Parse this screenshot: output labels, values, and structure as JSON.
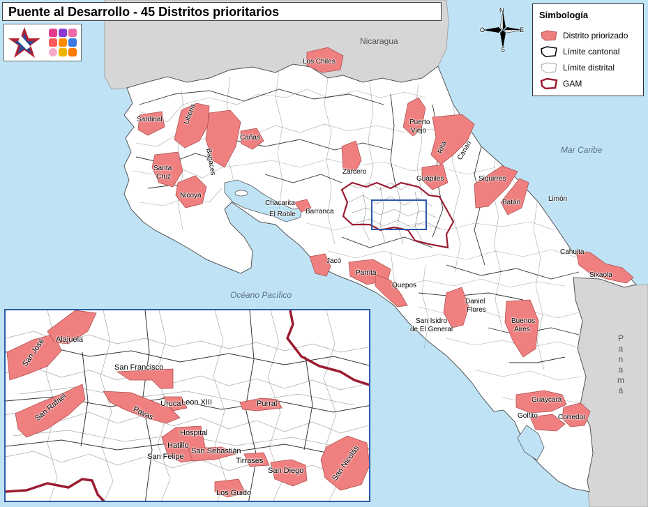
{
  "title": "Puente al Desarrollo - 45 Distritos prioritarios",
  "colors": {
    "sea": "#bfe3f5",
    "land": "#ffffff",
    "neighbor": "#d6d6d6",
    "priority": "#f08080",
    "gam": "#9b1c31",
    "inset_frame": "#2a5aa8"
  },
  "legend": {
    "title": "Simbología",
    "items": [
      {
        "label": "Distrito priorizado",
        "symbol": "pink-fill-icon"
      },
      {
        "label": "Límite cantonal",
        "symbol": "black-outline-icon"
      },
      {
        "label": "Límite distrital",
        "symbol": "gray-outline-icon"
      },
      {
        "label": "GAM",
        "symbol": "red-outline-icon"
      }
    ]
  },
  "compass": {
    "n": "N",
    "s": "S",
    "e": "E",
    "o": "O"
  },
  "water_labels": {
    "caribbean": "Mar Caribe",
    "pacific": "Océano Pacífico"
  },
  "country_labels": {
    "nicaragua": "Nicaragua",
    "panama": "P a n a m á"
  },
  "districts": {
    "los_chiles": "Los Chiles",
    "sardinal": "Sardinal",
    "liberia": "Liberia",
    "bagaces": "Bagaces",
    "canas": "Cañas",
    "santa_cruz_1": "Santa",
    "santa_cruz_2": "Cruz",
    "nicoya": "Nicoya",
    "chacarita": "Chacarita",
    "el_roble": "El Roble",
    "barranca": "Barranca",
    "zarcero": "Zarcero",
    "puerto_viejo_1": "Puerto",
    "puerto_viejo_2": "Viejo",
    "rita": "Rita",
    "cariari": "Cariari",
    "guapiles": "Guápiles",
    "siquirres": "Siquirres",
    "batan": "Batán",
    "limon": "Limón",
    "jaco": "Jacó",
    "parrita": "Parrita",
    "quepos": "Quepos",
    "daniel_flores_1": "Daniel",
    "daniel_flores_2": "Flores",
    "san_isidro_1": "San Isidro",
    "san_isidro_2": "de El General",
    "buenos_aires_1": "Buenos",
    "buenos_aires_2": "Aires",
    "cahuita": "Cahuita",
    "sixaola": "Sixaola",
    "guaycara": "Guaycará",
    "golfito": "Golfito",
    "corredor": "Corredor"
  },
  "inset_districts": {
    "san_jose": "San José",
    "alajuela": "Alajuela",
    "san_francisco": "San Francisco",
    "san_rafael": "San Rafael",
    "pavas": "Pavas",
    "uruca": "Uruca",
    "leon_xiii": "Leon XIII",
    "purral": "Purral",
    "hospital": "Hospital",
    "hatillo": "Hatillo",
    "san_felipe": "San Felipe",
    "san_sebastian": "San Sebastián",
    "tirrases": "Tirrases",
    "san_diego": "San Diego",
    "san_nicolas": "San Nicolás",
    "los_guido": "Los Guido"
  }
}
